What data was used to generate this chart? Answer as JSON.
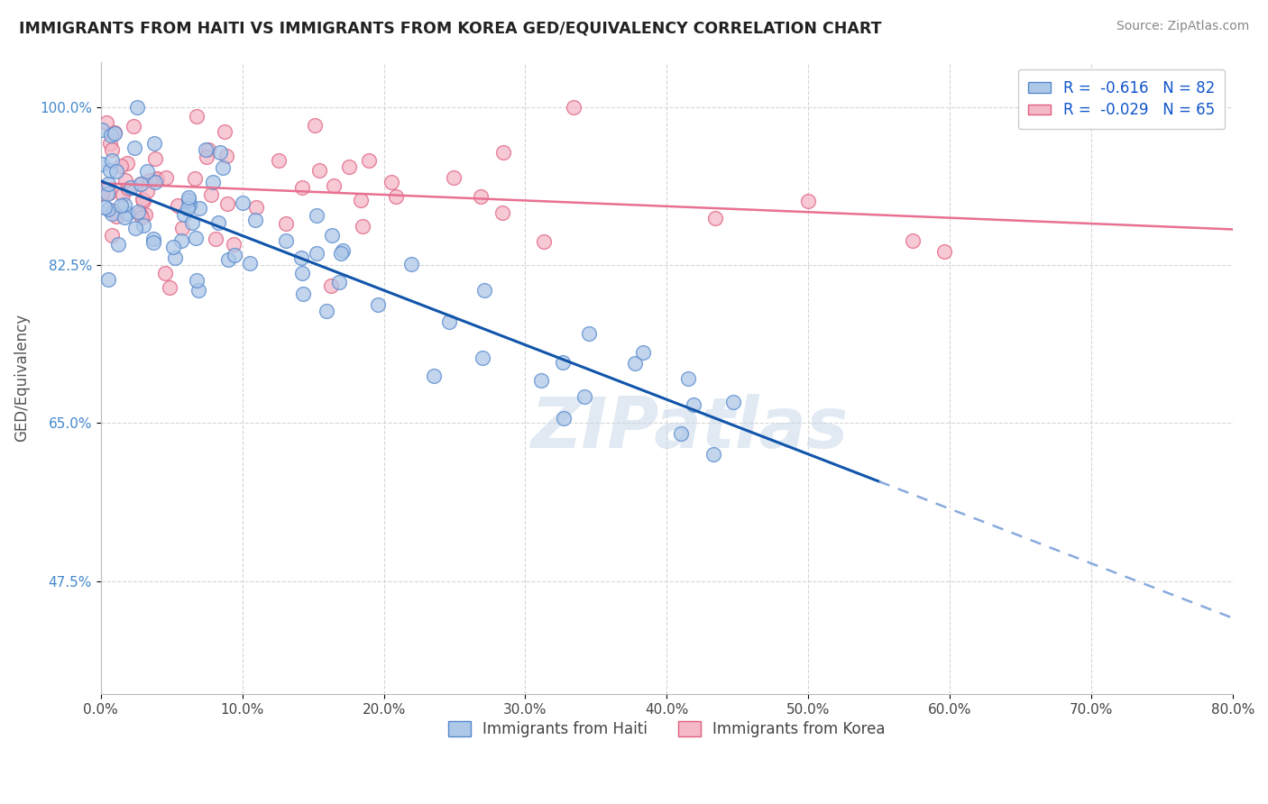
{
  "title": "IMMIGRANTS FROM HAITI VS IMMIGRANTS FROM KOREA GED/EQUIVALENCY CORRELATION CHART",
  "source": "Source: ZipAtlas.com",
  "xlabel_haiti": "Immigrants from Haiti",
  "xlabel_korea": "Immigrants from Korea",
  "ylabel": "GED/Equivalency",
  "xlim_pct": [
    0.0,
    80.0
  ],
  "ylim_pct": [
    35.0,
    105.0
  ],
  "xtick_vals": [
    0.0,
    10.0,
    20.0,
    30.0,
    40.0,
    50.0,
    60.0,
    70.0,
    80.0
  ],
  "ytick_vals": [
    47.5,
    65.0,
    82.5,
    100.0
  ],
  "haiti_color": "#aec8e8",
  "korea_color": "#f4b8c8",
  "haiti_edge": "#5588cc",
  "korea_edge": "#e06080",
  "haiti_trend_color": "#1155aa",
  "korea_trend_color": "#e87090",
  "haiti_dash_color": "#88aadd",
  "haiti_R": -0.616,
  "haiti_N": 82,
  "korea_R": -0.029,
  "korea_N": 65,
  "watermark": "ZIPatlas",
  "grid_color": "#cccccc",
  "grid_style": "--"
}
